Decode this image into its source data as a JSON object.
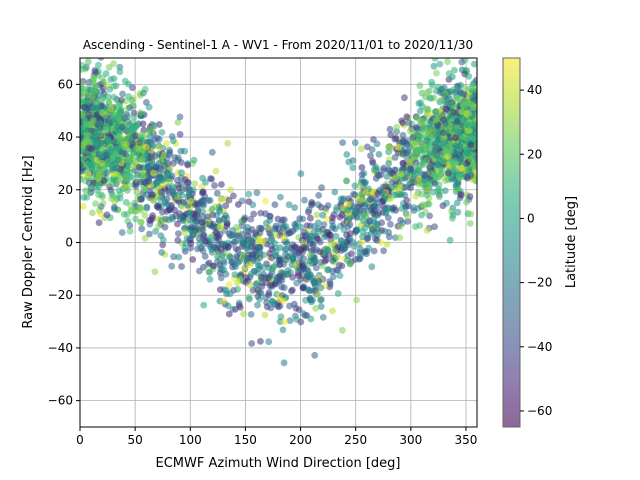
{
  "chart_data": {
    "type": "scatter",
    "title": "Ascending - Sentinel-1 A - WV1 - From 2020/11/01 to 2020/11/30",
    "xlabel": "ECMWF Azimuth Wind Direction [deg]",
    "ylabel": "Raw Doppler Centroid [Hz]",
    "xlim": [
      0,
      360
    ],
    "ylim": [
      -70,
      70
    ],
    "xticks": [
      0,
      50,
      100,
      150,
      200,
      250,
      300,
      350
    ],
    "yticks": [
      -60,
      -40,
      -20,
      0,
      20,
      40,
      60
    ],
    "grid": true,
    "colorbar": {
      "label": "Latitude [deg]",
      "range": [
        -65,
        50
      ],
      "ticks": [
        -60,
        -40,
        -20,
        0,
        20,
        40
      ],
      "colormap": "viridis"
    },
    "trend": {
      "description": "points follow a cosine-shaped relation to wind direction",
      "peak_hz": 42,
      "trough_hz": -8,
      "trough_at_deg": 180,
      "spread_hz": 13
    },
    "point_count": 3400
  }
}
